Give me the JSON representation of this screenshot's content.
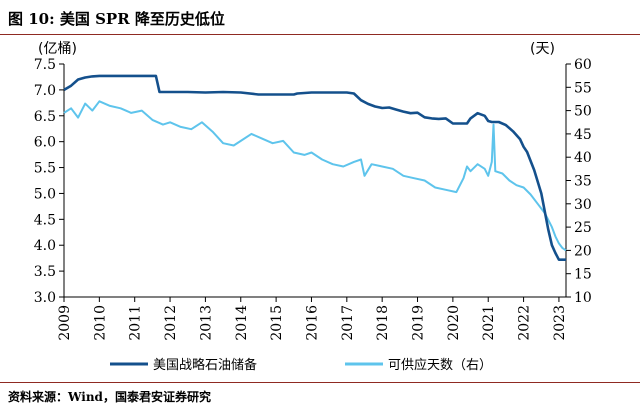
{
  "figure": {
    "title": "图 10:  美国 SPR 降至历史低位",
    "source": "资料来源：Wind，国泰君安证券研究"
  },
  "chart_data": {
    "type": "line",
    "left_unit": "(亿桶)",
    "right_unit": "(天)",
    "x_ticks": [
      "2009",
      "2010",
      "2011",
      "2012",
      "2013",
      "2014",
      "2015",
      "2016",
      "2017",
      "2018",
      "2019",
      "2020",
      "2021",
      "2022",
      "2023"
    ],
    "xlim": [
      2009,
      2023.2
    ],
    "ylim_left": [
      3.0,
      7.5
    ],
    "ylim_right": [
      10,
      60
    ],
    "y_ticks_left": [
      "3.0",
      "3.5",
      "4.0",
      "4.5",
      "5.0",
      "5.5",
      "6.0",
      "6.5",
      "7.0",
      "7.5"
    ],
    "y_ticks_right": [
      "10",
      "15",
      "20",
      "25",
      "30",
      "35",
      "40",
      "45",
      "50",
      "55",
      "60"
    ],
    "grid": false,
    "legend_position": "bottom",
    "colors": {
      "reserve": "#14508c",
      "days": "#5ec4ec"
    },
    "series": [
      {
        "name": "美国战略石油储备",
        "axis": "left",
        "x": [
          2009.0,
          2009.2,
          2009.4,
          2009.6,
          2009.8,
          2010.0,
          2010.5,
          2011.0,
          2011.5,
          2011.6,
          2011.7,
          2012.0,
          2012.5,
          2013.0,
          2013.5,
          2014.0,
          2014.5,
          2015.0,
          2015.5,
          2015.6,
          2016.0,
          2016.5,
          2017.0,
          2017.2,
          2017.4,
          2017.6,
          2017.8,
          2018.0,
          2018.2,
          2018.4,
          2018.6,
          2018.8,
          2019.0,
          2019.2,
          2019.4,
          2019.6,
          2019.8,
          2020.0,
          2020.2,
          2020.4,
          2020.5,
          2020.7,
          2020.9,
          2021.0,
          2021.1,
          2021.3,
          2021.5,
          2021.7,
          2021.9,
          2022.0,
          2022.1,
          2022.3,
          2022.5,
          2022.7,
          2022.8,
          2022.9,
          2023.0,
          2023.2
        ],
        "values": [
          7.0,
          7.08,
          7.2,
          7.24,
          7.26,
          7.27,
          7.27,
          7.27,
          7.27,
          7.27,
          6.96,
          6.96,
          6.96,
          6.95,
          6.96,
          6.95,
          6.91,
          6.91,
          6.91,
          6.93,
          6.95,
          6.95,
          6.95,
          6.93,
          6.8,
          6.73,
          6.68,
          6.65,
          6.66,
          6.62,
          6.58,
          6.55,
          6.56,
          6.47,
          6.45,
          6.44,
          6.45,
          6.35,
          6.35,
          6.35,
          6.45,
          6.55,
          6.5,
          6.4,
          6.38,
          6.38,
          6.32,
          6.2,
          6.05,
          5.9,
          5.8,
          5.45,
          5.0,
          4.3,
          4.0,
          3.85,
          3.72,
          3.72
        ]
      },
      {
        "name": "可供应天数（右）",
        "axis": "right",
        "x": [
          2009.0,
          2009.2,
          2009.4,
          2009.6,
          2009.8,
          2010.0,
          2010.3,
          2010.6,
          2010.9,
          2011.2,
          2011.5,
          2011.8,
          2012.0,
          2012.3,
          2012.6,
          2012.9,
          2013.2,
          2013.5,
          2013.8,
          2014.0,
          2014.3,
          2014.6,
          2014.9,
          2015.2,
          2015.5,
          2015.8,
          2016.0,
          2016.3,
          2016.6,
          2016.9,
          2017.2,
          2017.4,
          2017.5,
          2017.7,
          2018.0,
          2018.3,
          2018.6,
          2018.9,
          2019.2,
          2019.5,
          2019.8,
          2020.1,
          2020.3,
          2020.4,
          2020.5,
          2020.7,
          2020.9,
          2021.0,
          2021.1,
          2021.15,
          2021.2,
          2021.4,
          2021.6,
          2021.8,
          2022.0,
          2022.2,
          2022.4,
          2022.6,
          2022.8,
          2022.9,
          2023.0,
          2023.1,
          2023.2
        ],
        "values": [
          49.5,
          50.5,
          48.5,
          51.5,
          50,
          52,
          51,
          50.5,
          49.5,
          50,
          48,
          47,
          47.5,
          46.5,
          46,
          47.5,
          45.5,
          43,
          42.5,
          43.5,
          45,
          44,
          43,
          43.5,
          41,
          40.5,
          41,
          39.5,
          38.5,
          38,
          39,
          39.5,
          36,
          38.5,
          38,
          37.5,
          36,
          35.5,
          35,
          33.5,
          33,
          32.5,
          35.5,
          38,
          37,
          38.5,
          37.5,
          36,
          39,
          47,
          37,
          36.5,
          35,
          34,
          33.5,
          32,
          30,
          28,
          25,
          23,
          21.5,
          20.5,
          20
        ]
      }
    ]
  },
  "legend": {
    "reserve_label": "美国战略石油储备",
    "days_label": "可供应天数（右）"
  }
}
